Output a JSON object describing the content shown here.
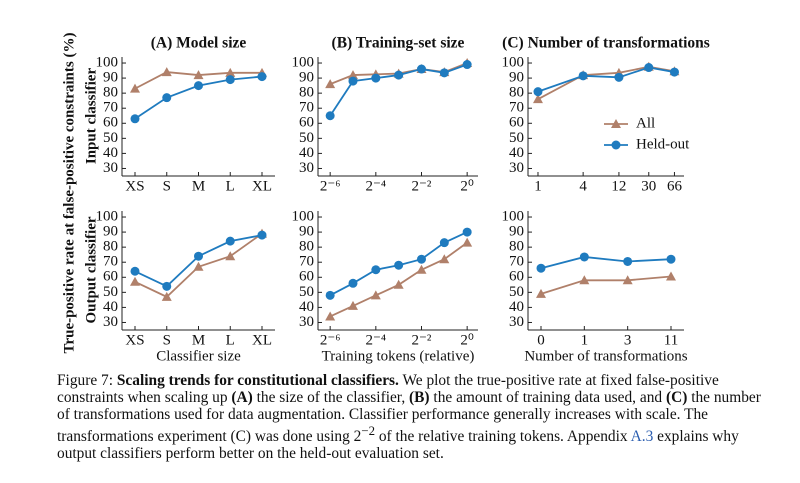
{
  "figure": {
    "ylabel": "True-positive rate at false-positive constraints (%)",
    "rows": [
      "Input classifier",
      "Output classifier"
    ],
    "caption": [
      "Figure 7:",
      "Scaling trends for constitutional classifiers.",
      "We plot the true-positive rate at fixed false-positive constraints when scaling up",
      "(A)",
      "the size of the classifier,",
      "(B)",
      "the amount of training data used, and",
      "(C)",
      "the number of transformations used for data augmentation. Classifier performance generally increases with scale. The transformations experiment (C) was done using 2",
      "−2",
      "of the relative training tokens. Appendix",
      "A.3",
      "explains why output classifiers perform better on the held-out evaluation set."
    ]
  },
  "chart_data": [
    {
      "type": "line",
      "title": "(A) Model size",
      "categories": [
        "XS",
        "S",
        "M",
        "L",
        "XL"
      ],
      "series": [
        {
          "name": "All",
          "color": "#b0806a",
          "marker": "triangle",
          "values": [
            83,
            94,
            92,
            93.5,
            93.5
          ]
        },
        {
          "name": "Held-out",
          "color": "#1f7bbf",
          "marker": "circle",
          "values": [
            63,
            77,
            85,
            89,
            91
          ]
        }
      ],
      "ylim": [
        25,
        104
      ],
      "yticks": [
        30,
        40,
        50,
        60,
        70,
        80,
        90,
        100
      ]
    },
    {
      "type": "line",
      "title": "(B) Training-set size",
      "x": [
        0.015625,
        0.03125,
        0.0625,
        0.125,
        0.25,
        0.5,
        1
      ],
      "xscale": "log",
      "xlim": [
        0.0108,
        1.39
      ],
      "xticks": [
        {
          "value": 0.015625,
          "label": "2⁻⁶"
        },
        {
          "value": 0.0625,
          "label": "2⁻⁴"
        },
        {
          "value": 0.25,
          "label": "2⁻²"
        },
        {
          "value": 1,
          "label": "2⁰"
        }
      ],
      "series": [
        {
          "name": "All",
          "color": "#b0806a",
          "marker": "triangle",
          "values": [
            86,
            92,
            92.5,
            93,
            96,
            94,
            100
          ]
        },
        {
          "name": "Held-out",
          "color": "#1f7bbf",
          "marker": "circle",
          "values": [
            65,
            88,
            90,
            92,
            96,
            93.5,
            99
          ]
        }
      ],
      "ylim": [
        25,
        104
      ],
      "yticks": [
        30,
        40,
        50,
        60,
        70,
        80,
        90,
        100
      ]
    },
    {
      "type": "line",
      "title": "(C) Number of transformations",
      "x": [
        1,
        4,
        12,
        30,
        66
      ],
      "xscale": "log",
      "xlim": [
        0.736,
        88.5
      ],
      "xticks": [
        1,
        4,
        12,
        30,
        66
      ],
      "legend": "center right",
      "series": [
        {
          "name": "All",
          "color": "#b0806a",
          "marker": "triangle",
          "values": [
            76,
            92,
            93.5,
            97.5,
            94.5
          ]
        },
        {
          "name": "Held-out",
          "color": "#1f7bbf",
          "marker": "circle",
          "values": [
            81,
            91.5,
            90.5,
            97,
            94
          ]
        }
      ],
      "ylim": [
        25,
        104
      ],
      "yticks": [
        30,
        40,
        50,
        60,
        70,
        80,
        90,
        100
      ]
    },
    {
      "type": "line",
      "xlabel": "Classifier size",
      "categories": [
        "XS",
        "S",
        "M",
        "L",
        "XL"
      ],
      "series": [
        {
          "name": "All",
          "color": "#b0806a",
          "marker": "triangle",
          "values": [
            57,
            47,
            67,
            74,
            89
          ]
        },
        {
          "name": "Held-out",
          "color": "#1f7bbf",
          "marker": "circle",
          "values": [
            64,
            54,
            74,
            84,
            88
          ]
        }
      ],
      "ylim": [
        25,
        104
      ],
      "yticks": [
        30,
        40,
        50,
        60,
        70,
        80,
        90,
        100
      ]
    },
    {
      "type": "line",
      "xlabel": "Training tokens (relative)",
      "x": [
        0.015625,
        0.03125,
        0.0625,
        0.125,
        0.25,
        0.5,
        1
      ],
      "xscale": "log",
      "xlim": [
        0.0108,
        1.39
      ],
      "xticks": [
        {
          "value": 0.015625,
          "label": "2⁻⁶"
        },
        {
          "value": 0.0625,
          "label": "2⁻⁴"
        },
        {
          "value": 0.25,
          "label": "2⁻²"
        },
        {
          "value": 1,
          "label": "2⁰"
        }
      ],
      "series": [
        {
          "name": "All",
          "color": "#b0806a",
          "marker": "triangle",
          "values": [
            34,
            41,
            48,
            55,
            65,
            72,
            83
          ]
        },
        {
          "name": "Held-out",
          "color": "#1f7bbf",
          "marker": "circle",
          "values": [
            48,
            56,
            65,
            68,
            72,
            83,
            90
          ]
        }
      ],
      "ylim": [
        25,
        104
      ],
      "yticks": [
        30,
        40,
        50,
        60,
        70,
        80,
        90,
        100
      ]
    },
    {
      "type": "line",
      "xlabel": "Number of transformations",
      "categories": [
        "0",
        "1",
        "3",
        "11"
      ],
      "series": [
        {
          "name": "All",
          "color": "#b0806a",
          "marker": "triangle",
          "values": [
            49,
            58,
            58,
            60.5
          ]
        },
        {
          "name": "Held-out",
          "color": "#1f7bbf",
          "marker": "circle",
          "values": [
            66,
            73.5,
            70.5,
            72
          ]
        }
      ],
      "ylim": [
        25,
        104
      ],
      "yticks": [
        30,
        40,
        50,
        60,
        70,
        80,
        90,
        100
      ]
    }
  ]
}
